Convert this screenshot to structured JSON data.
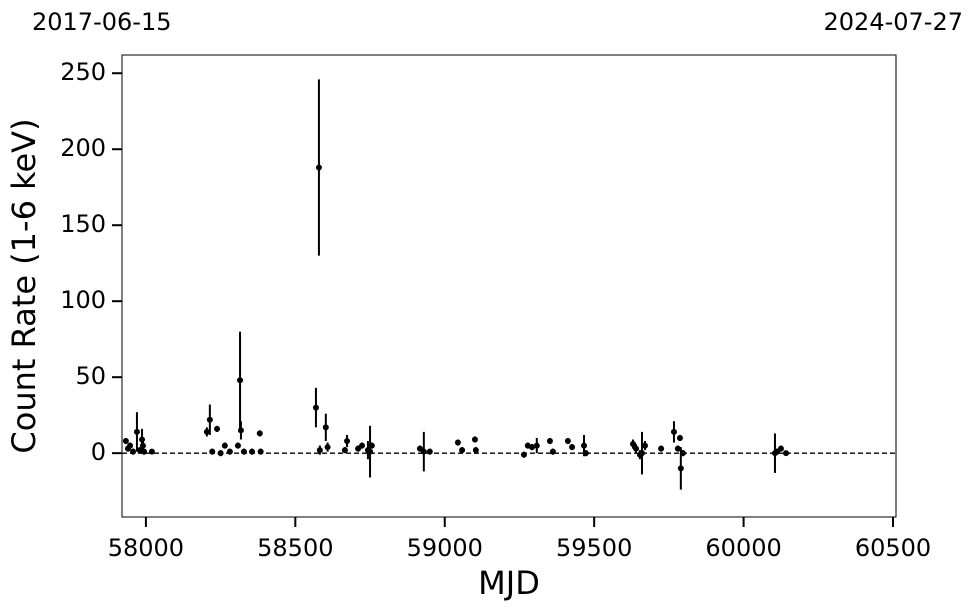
{
  "chart_data": {
    "type": "scatter",
    "top_left_label": "2017-06-15",
    "top_right_label": "2024-07-27",
    "x_label": "MJD",
    "y_label": "Count Rate (1-6 keV)",
    "xlim": [
      57920,
      60510
    ],
    "ylim": [
      -42,
      262
    ],
    "xticks": [
      58000,
      58500,
      59000,
      59500,
      60000,
      60500
    ],
    "yticks": [
      0,
      50,
      100,
      150,
      200,
      250
    ],
    "reference_line": 0,
    "color": "#000000",
    "series": [
      {
        "x": [
          57933,
          57940,
          57947,
          57957,
          57970,
          57980,
          57987,
          57990,
          57994,
          58020,
          58204,
          58214,
          58222,
          58238,
          58250,
          58264,
          58281,
          58308,
          58315,
          58318,
          58328,
          58355,
          58381,
          58384,
          58569,
          58579,
          58582,
          58602,
          58608,
          58666,
          58673,
          58710,
          58723,
          58743,
          58750,
          58756,
          58917,
          58930,
          58950,
          59044,
          59058,
          59101,
          59104,
          59265,
          59278,
          59292,
          59308,
          59352,
          59362,
          59412,
          59426,
          59466,
          59472,
          59630,
          59640,
          59653,
          59660,
          59670,
          59724,
          59767,
          59780,
          59787,
          59790,
          59797,
          60105,
          60112,
          60125,
          60142
        ],
        "values": [
          8,
          3,
          5,
          1,
          14,
          2,
          9,
          5,
          1,
          1,
          14,
          22,
          1,
          16,
          0,
          5,
          1,
          5,
          48,
          15,
          1,
          1,
          13,
          1,
          30,
          188,
          2,
          17,
          4,
          2,
          8,
          3,
          5,
          2,
          1,
          5,
          3,
          1,
          1,
          7,
          2,
          9,
          2,
          -1,
          5,
          4,
          5,
          8,
          1,
          8,
          4,
          5,
          0,
          6,
          3,
          -1,
          0,
          5,
          3,
          14,
          3,
          10,
          -10,
          0,
          0,
          1,
          3,
          0
        ],
        "errors": [
          2,
          2,
          2,
          2,
          13,
          2,
          7,
          3,
          2,
          1,
          3,
          10,
          2,
          2,
          2,
          2,
          2,
          2,
          32,
          6,
          2,
          2,
          2,
          2,
          13,
          58,
          3,
          9,
          3,
          2,
          4,
          2,
          2,
          6,
          17,
          2,
          2,
          13,
          2,
          2,
          2,
          2,
          2,
          2,
          2,
          2,
          5,
          2,
          2,
          2,
          2,
          7,
          2,
          3,
          3,
          3,
          14,
          3,
          2,
          7,
          2,
          2,
          14,
          2,
          13,
          2,
          2,
          1
        ]
      }
    ]
  }
}
